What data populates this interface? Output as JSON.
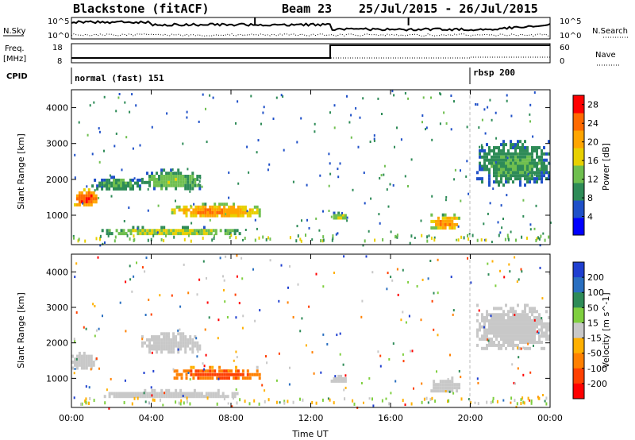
{
  "header": {
    "station": "Blackstone (fitACF)",
    "beam": "Beam 23",
    "date_range": "25/Jul/2015 - 26/Jul/2015"
  },
  "noise_panel": {
    "left_label": "N.Sky",
    "right_label": "N.Search",
    "tick_high": "10^5",
    "tick_low": "10^0"
  },
  "freq_panel": {
    "left_label_1": "Freq.",
    "left_label_2": "[MHz]",
    "left_ticks": [
      "18",
      "8"
    ],
    "right_label": "Nave",
    "right_ticks": [
      "60",
      "0"
    ]
  },
  "cpid_panel": {
    "label": "CPID",
    "mode_1": "normal (fast) 151",
    "mode_2": "rbsp 200",
    "mode_2_start_hour": 20.0
  },
  "chart_data": [
    {
      "type": "heatmap",
      "variable": "power",
      "ylabel": "Slant Range [km]",
      "xlabel": "",
      "x_ticks": [
        "00:00",
        "04:00",
        "08:00",
        "12:00",
        "16:00",
        "20:00",
        "00:00"
      ],
      "xlim_hours": [
        0,
        24
      ],
      "y_ticks": [
        1000,
        2000,
        3000,
        4000
      ],
      "ylim": [
        180,
        4500
      ],
      "colorbar_label": "Power [dB]",
      "colorbar_ticks": [
        4,
        8,
        12,
        16,
        20,
        24,
        28
      ],
      "colorbar_range": [
        0,
        30
      ],
      "colors": [
        "#0000ff",
        "#1f50c8",
        "#2e8b57",
        "#6fbf4f",
        "#e8d000",
        "#ffa500",
        "#ff6a00",
        "#ff0000"
      ],
      "echo_regions": [
        {
          "hours": [
            0.0,
            1.3
          ],
          "range_km": [
            1250,
            1750
          ],
          "level_db": 24
        },
        {
          "hours": [
            1.0,
            3.5
          ],
          "range_km": [
            1700,
            2100
          ],
          "level_db": 10
        },
        {
          "hours": [
            3.5,
            6.5
          ],
          "range_km": [
            1700,
            2300
          ],
          "level_db": 12
        },
        {
          "hours": [
            5.0,
            9.5
          ],
          "range_km": [
            950,
            1350
          ],
          "level_db": 20
        },
        {
          "hours": [
            1.5,
            8.5
          ],
          "range_km": [
            450,
            700
          ],
          "level_db": 14
        },
        {
          "hours": [
            13.0,
            13.8
          ],
          "range_km": [
            900,
            1100
          ],
          "level_db": 14
        },
        {
          "hours": [
            18.0,
            19.5
          ],
          "range_km": [
            600,
            1050
          ],
          "level_db": 20
        },
        {
          "hours": [
            20.3,
            24.0
          ],
          "range_km": [
            1800,
            3100
          ],
          "level_db": 10
        }
      ]
    },
    {
      "type": "heatmap",
      "variable": "velocity",
      "ylabel": "Slant Range [km]",
      "xlabel": "Time UT",
      "x_ticks": [
        "00:00",
        "04:00",
        "08:00",
        "12:00",
        "16:00",
        "20:00",
        "00:00"
      ],
      "xlim_hours": [
        0,
        24
      ],
      "y_ticks": [
        1000,
        2000,
        3000,
        4000
      ],
      "ylim": [
        180,
        4500
      ],
      "colorbar_label": "Velocity [m s^-1]",
      "colorbar_ticks": [
        200,
        100,
        50,
        15,
        -15,
        -50,
        -100,
        -200
      ],
      "colors": [
        "#1f3fd0",
        "#2a6fc0",
        "#2e8b57",
        "#7fcf3f",
        "#c8c8c8",
        "#ffb000",
        "#ff8000",
        "#ff4000",
        "#ff0000"
      ],
      "echo_regions": [
        {
          "hours": [
            0.0,
            1.3
          ],
          "range_km": [
            1250,
            1750
          ],
          "velocity": 0
        },
        {
          "hours": [
            3.5,
            6.5
          ],
          "range_km": [
            1700,
            2300
          ],
          "velocity": 0
        },
        {
          "hours": [
            5.0,
            9.5
          ],
          "range_km": [
            950,
            1350
          ],
          "velocity": -80
        },
        {
          "hours": [
            1.5,
            8.5
          ],
          "range_km": [
            450,
            700
          ],
          "velocity": 0
        },
        {
          "hours": [
            13.0,
            13.8
          ],
          "range_km": [
            900,
            1100
          ],
          "velocity": 0
        },
        {
          "hours": [
            18.0,
            19.5
          ],
          "range_km": [
            600,
            1050
          ],
          "velocity": 0
        },
        {
          "hours": [
            20.3,
            24.0
          ],
          "range_km": [
            1800,
            3100
          ],
          "velocity": 0
        }
      ]
    }
  ]
}
